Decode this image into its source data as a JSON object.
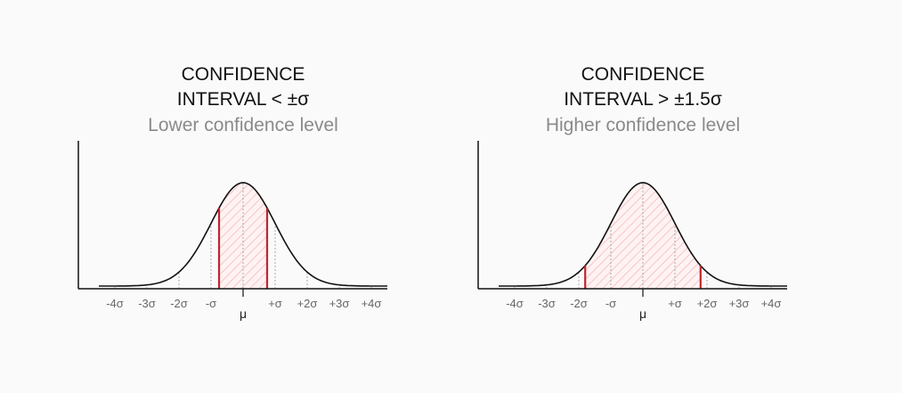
{
  "panels": [
    {
      "title_lines": [
        "CONFIDENCE",
        "INTERVAL < ±σ"
      ],
      "subtitle": "Lower confidence level",
      "tick_labels": [
        "-4σ",
        "-3σ",
        "-2σ",
        "-σ",
        "μ",
        "+σ",
        "+2σ",
        "+3σ",
        "+4σ"
      ]
    },
    {
      "title_lines": [
        "CONFIDENCE",
        "INTERVAL > ±1.5σ"
      ],
      "subtitle": "Higher confidence level",
      "tick_labels": [
        "-4σ",
        "-3σ",
        "-2σ",
        "-σ",
        "μ",
        "+σ",
        "+2σ",
        "+3σ",
        "+4σ"
      ]
    }
  ]
}
